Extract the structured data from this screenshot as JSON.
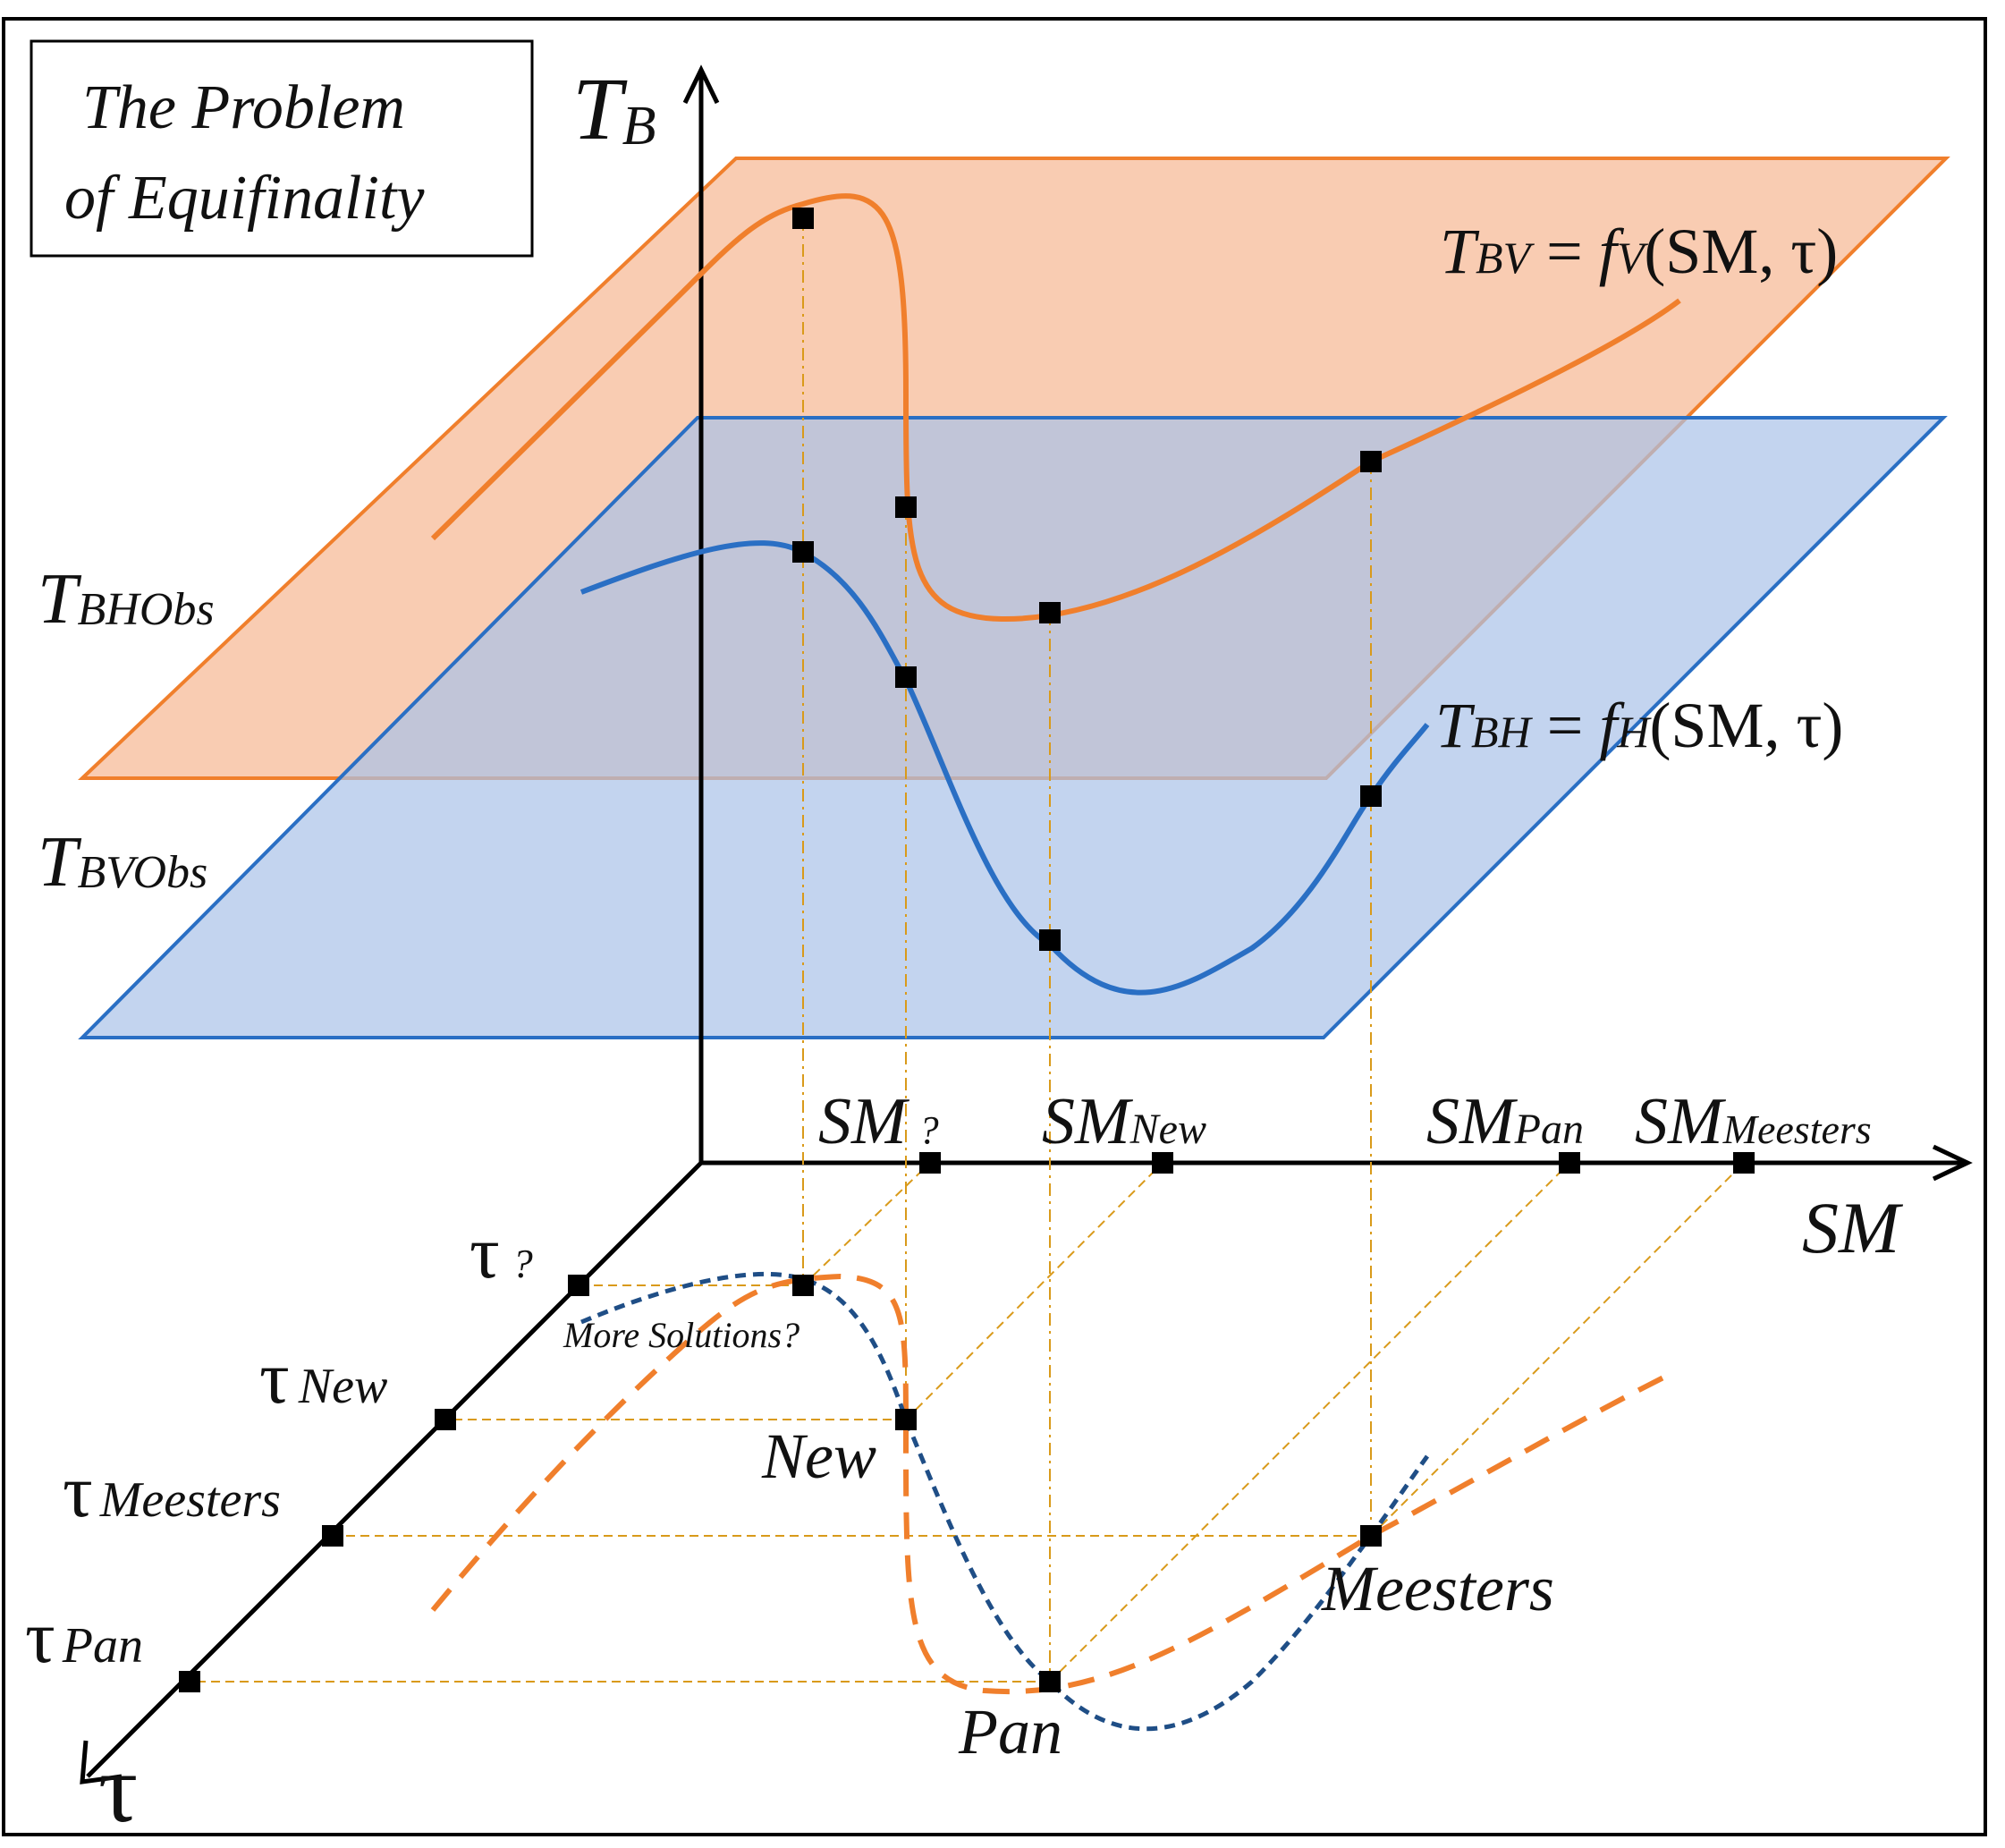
{
  "title": {
    "line1": "The Problem",
    "line2": "of Equifinality"
  },
  "axes": {
    "vertical": {
      "main": "T",
      "sub": "B"
    },
    "horizontal": "SM",
    "depth": "τ"
  },
  "plane_labels": {
    "bhobs": {
      "main": "T",
      "sub": "BHObs"
    },
    "bvobs": {
      "main": "T",
      "sub": "BVObs"
    }
  },
  "equations": {
    "bv": {
      "lhs_main": "T",
      "lhs_sub": "BV",
      "eq": " = ",
      "f": "f",
      "f_sub": "V",
      "args": "(SM, τ)"
    },
    "bh": {
      "lhs_main": "T",
      "lhs_sub": "BH",
      "eq": " = ",
      "f": "f",
      "f_sub": "H",
      "args": "(SM, τ)"
    }
  },
  "sm_ticks": [
    {
      "main": "SM",
      "sub": "?"
    },
    {
      "main": "SM",
      "sub": "New"
    },
    {
      "main": "SM",
      "sub": "Pan"
    },
    {
      "main": "SM",
      "sub": "Meesters"
    }
  ],
  "tau_ticks": [
    {
      "main": "τ",
      "sub": "?"
    },
    {
      "main": "τ",
      "sub": "New"
    },
    {
      "main": "τ",
      "sub": "Meesters"
    },
    {
      "main": "τ",
      "sub": "Pan"
    }
  ],
  "solution_labels": {
    "more": "More Solutions?",
    "new": "New",
    "meesters": "Meesters",
    "pan": "Pan"
  },
  "colors": {
    "orange_plane": "#f8c5a7",
    "orange_line": "#f07f2c",
    "blue_plane": "#c5d5ee",
    "blue_line": "#2a6fc4",
    "dark_blue_dash": "#1f4e86",
    "guide": "#d99a1a",
    "axis": "#000000"
  }
}
